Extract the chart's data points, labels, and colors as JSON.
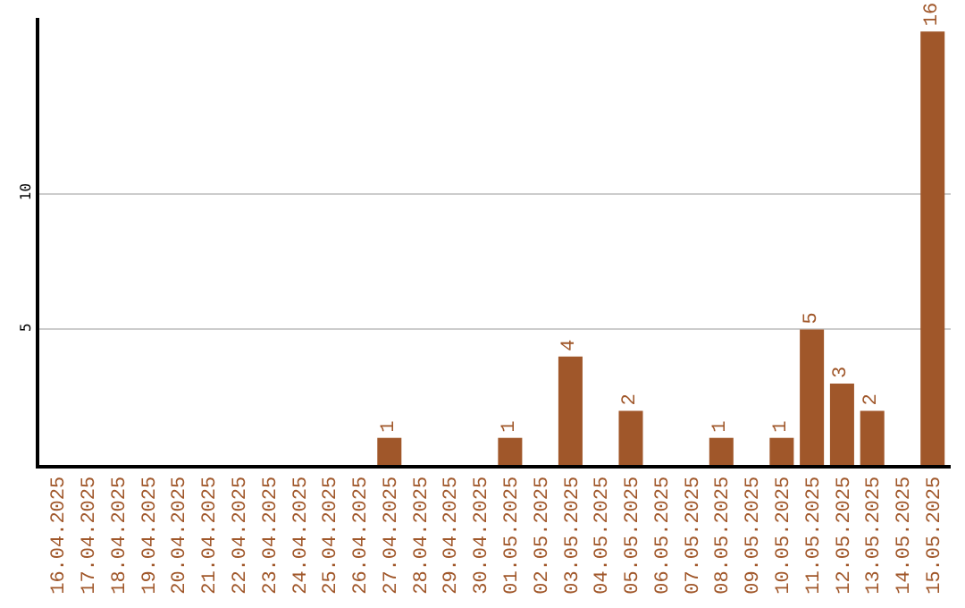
{
  "chart_data": {
    "type": "bar",
    "categories": [
      "16.04.2025",
      "17.04.2025",
      "18.04.2025",
      "19.04.2025",
      "20.04.2025",
      "21.04.2025",
      "22.04.2025",
      "23.04.2025",
      "24.04.2025",
      "25.04.2025",
      "26.04.2025",
      "27.04.2025",
      "28.04.2025",
      "29.04.2025",
      "30.04.2025",
      "01.05.2025",
      "02.05.2025",
      "03.05.2025",
      "04.05.2025",
      "05.05.2025",
      "06.05.2025",
      "07.05.2025",
      "08.05.2025",
      "09.05.2025",
      "10.05.2025",
      "11.05.2025",
      "12.05.2025",
      "13.05.2025",
      "14.05.2025",
      "15.05.2025"
    ],
    "values": [
      0,
      0,
      0,
      0,
      0,
      0,
      0,
      0,
      0,
      0,
      0,
      1,
      0,
      0,
      0,
      1,
      0,
      4,
      0,
      2,
      0,
      0,
      1,
      0,
      1,
      5,
      3,
      2,
      0,
      16
    ],
    "value_labels": [
      null,
      null,
      null,
      null,
      null,
      null,
      null,
      null,
      null,
      null,
      null,
      "1",
      null,
      null,
      null,
      "1",
      null,
      "4",
      null,
      "2",
      null,
      null,
      "1",
      null,
      "1",
      "5",
      "3",
      "2",
      null,
      "16"
    ],
    "color": "#a0572a",
    "ylim": [
      0,
      16.5
    ],
    "yticks": [
      5,
      10
    ],
    "grid": "y",
    "legend": false
  }
}
